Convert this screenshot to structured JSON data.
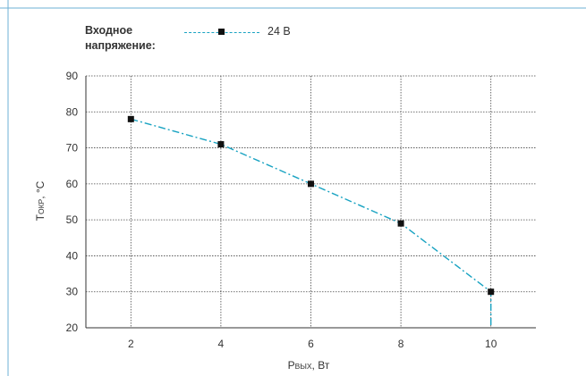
{
  "chart_data": {
    "type": "line",
    "legend_title": "Входное\nнапряжение:",
    "series": [
      {
        "name": "24 В",
        "x": [
          2,
          4,
          6,
          8,
          10,
          10
        ],
        "y": [
          78,
          71,
          60,
          49,
          30,
          20
        ]
      }
    ],
    "markers": {
      "x": [
        2,
        4,
        6,
        8,
        10
      ],
      "y": [
        78,
        71,
        60,
        49,
        30
      ]
    },
    "xlabel_main": "P",
    "xlabel_sub": "ВЫХ",
    "xlabel_unit": ", Вт",
    "ylabel_main": "T",
    "ylabel_sub": "ОКР",
    "ylabel_unit": ", °C",
    "x_ticks": [
      2,
      4,
      6,
      8,
      10
    ],
    "y_ticks": [
      20,
      30,
      40,
      50,
      60,
      70,
      80,
      90
    ],
    "xlim": [
      1,
      11
    ],
    "ylim": [
      20,
      90
    ],
    "grid": true,
    "legend_position": "top-left",
    "colors": {
      "series": "#19a3c2",
      "marker": "#111111",
      "grid": "#333333",
      "frame": "#6db0d6"
    }
  }
}
